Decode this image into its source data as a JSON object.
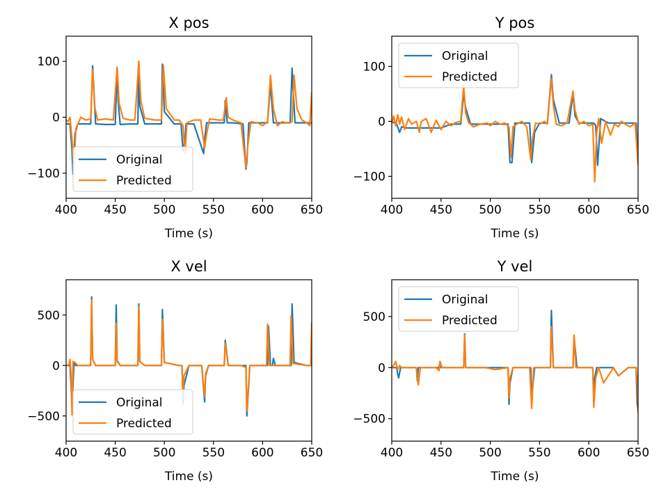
{
  "colors": {
    "original": "#1f77b4",
    "predicted": "#ff7f0e"
  },
  "chart_data": [
    {
      "type": "line",
      "title": "X pos",
      "xlabel": "Time (s)",
      "ylabel": "",
      "xlim": [
        400,
        650
      ],
      "ylim": [
        -145,
        145
      ],
      "xticks": [
        400,
        450,
        500,
        550,
        600,
        650
      ],
      "yticks": [
        -100,
        0,
        100
      ],
      "ytick_labels": [
        "−100",
        "0",
        "100"
      ],
      "legend": "lower-left",
      "series": [
        {
          "name": "Original",
          "x": [
            400,
            404,
            406,
            407,
            409,
            412,
            420,
            425,
            427,
            428,
            430,
            440,
            450,
            452,
            453,
            455,
            465,
            473,
            474,
            475,
            480,
            490,
            497,
            498,
            500,
            510,
            517,
            519,
            521,
            522,
            530,
            540,
            541,
            543,
            545,
            555,
            561,
            562,
            564,
            570,
            580,
            583,
            584,
            586,
            595,
            605,
            608,
            609,
            611,
            620,
            628,
            630,
            631,
            633,
            640,
            650
          ],
          "y": [
            -12,
            -12,
            -60,
            -102,
            -30,
            -12,
            -12,
            -12,
            92,
            60,
            -12,
            -13,
            -13,
            88,
            30,
            -13,
            -12,
            -12,
            100,
            20,
            -12,
            -12,
            -12,
            95,
            10,
            -12,
            -12,
            -60,
            -40,
            -12,
            -12,
            -65,
            -40,
            -10,
            -10,
            -10,
            -10,
            30,
            -10,
            -10,
            -12,
            -93,
            -80,
            -10,
            -10,
            -10,
            60,
            35,
            -10,
            -10,
            -10,
            88,
            50,
            -10,
            -10,
            -10
          ]
        },
        {
          "name": "Predicted",
          "x": [
            400,
            402,
            404,
            406,
            408,
            410,
            415,
            420,
            425,
            427,
            429,
            432,
            440,
            448,
            452,
            454,
            458,
            465,
            470,
            474,
            476,
            480,
            490,
            497,
            499,
            502,
            510,
            515,
            519,
            521,
            523,
            530,
            537,
            541,
            543,
            546,
            555,
            560,
            563,
            565,
            570,
            578,
            583,
            585,
            588,
            595,
            600,
            605,
            608,
            611,
            615,
            620,
            625,
            630,
            632,
            635,
            640,
            645,
            648,
            650
          ],
          "y": [
            -5,
            -8,
            0,
            -40,
            -90,
            -20,
            0,
            -5,
            -3,
            85,
            20,
            -5,
            -3,
            -5,
            90,
            25,
            -2,
            -5,
            -5,
            100,
            30,
            -2,
            -5,
            -5,
            93,
            15,
            -5,
            -5,
            -15,
            -65,
            -10,
            -5,
            -5,
            -55,
            -30,
            -3,
            -5,
            -5,
            35,
            0,
            -5,
            -10,
            -90,
            -50,
            -8,
            -10,
            -15,
            -8,
            75,
            15,
            -15,
            -8,
            -10,
            -8,
            75,
            15,
            -5,
            -10,
            -15,
            45
          ]
        }
      ]
    },
    {
      "type": "line",
      "title": "Y pos",
      "xlabel": "Time (s)",
      "ylabel": "",
      "xlim": [
        400,
        650
      ],
      "ylim": [
        -140,
        155
      ],
      "xticks": [
        400,
        450,
        500,
        550,
        600,
        650
      ],
      "yticks": [
        -100,
        0,
        100
      ],
      "ytick_labels": [
        "−100",
        "0",
        "100"
      ],
      "legend": "upper-left",
      "series": [
        {
          "name": "Original",
          "x": [
            400,
            405,
            408,
            410,
            415,
            420,
            425,
            430,
            440,
            450,
            460,
            470,
            473,
            475,
            480,
            490,
            500,
            510,
            518,
            520,
            522,
            525,
            530,
            540,
            542,
            545,
            550,
            558,
            562,
            564,
            570,
            580,
            584,
            586,
            590,
            600,
            605,
            607,
            609,
            612,
            620,
            630,
            640,
            648,
            650
          ],
          "y": [
            0,
            -5,
            -20,
            -10,
            -12,
            -12,
            -12,
            -12,
            -12,
            -12,
            -5,
            -5,
            50,
            25,
            -5,
            -5,
            -5,
            -5,
            -5,
            -75,
            -75,
            -3,
            -3,
            -3,
            -75,
            -20,
            -3,
            -3,
            85,
            40,
            -3,
            -3,
            50,
            10,
            -3,
            -3,
            -3,
            -8,
            -80,
            5,
            -3,
            -3,
            -3,
            -3,
            -75
          ]
        },
        {
          "name": "Predicted",
          "x": [
            400,
            402,
            404,
            406,
            408,
            410,
            413,
            417,
            420,
            425,
            428,
            430,
            435,
            440,
            445,
            450,
            455,
            460,
            465,
            470,
            473,
            475,
            478,
            483,
            490,
            497,
            500,
            505,
            510,
            515,
            519,
            521,
            523,
            527,
            532,
            537,
            541,
            543,
            546,
            550,
            555,
            558,
            562,
            564,
            567,
            572,
            578,
            584,
            586,
            590,
            595,
            600,
            604,
            606,
            608,
            610,
            613,
            617,
            622,
            626,
            630,
            633,
            637,
            642,
            647,
            650
          ],
          "y": [
            -5,
            10,
            -8,
            12,
            -5,
            8,
            -15,
            5,
            -5,
            0,
            -20,
            0,
            5,
            -20,
            2,
            -15,
            0,
            -8,
            -2,
            0,
            65,
            15,
            -2,
            -10,
            -5,
            -3,
            -8,
            0,
            -5,
            -3,
            -10,
            -65,
            -10,
            -5,
            0,
            -10,
            -70,
            -30,
            -3,
            -5,
            0,
            -5,
            78,
            30,
            -5,
            -8,
            -3,
            55,
            20,
            -5,
            0,
            -8,
            -5,
            -110,
            -20,
            5,
            -40,
            0,
            -25,
            -5,
            -10,
            0,
            -5,
            -10,
            -3,
            -80
          ]
        }
      ]
    },
    {
      "type": "line",
      "title": "X vel",
      "xlabel": "Time (s)",
      "ylabel": "",
      "xlim": [
        400,
        650
      ],
      "ylim": [
        -750,
        850
      ],
      "xticks": [
        400,
        450,
        500,
        550,
        600,
        650
      ],
      "yticks": [
        -500,
        0,
        500
      ],
      "ytick_labels": [
        "−500",
        "0",
        "500"
      ],
      "legend": "lower-left",
      "series": [
        {
          "name": "Original",
          "x": [
            400,
            404,
            405,
            406,
            408,
            410,
            420,
            425,
            426,
            427,
            430,
            445,
            450,
            451,
            452,
            455,
            470,
            473,
            474,
            475,
            480,
            495,
            497,
            498,
            500,
            515,
            518,
            519,
            520,
            525,
            538,
            541,
            542,
            545,
            558,
            561,
            562,
            565,
            578,
            583,
            584,
            587,
            600,
            605,
            606,
            608,
            610,
            611,
            613,
            625,
            629,
            630,
            632,
            645,
            650
          ],
          "y": [
            0,
            0,
            -200,
            -420,
            20,
            0,
            0,
            0,
            680,
            60,
            0,
            0,
            0,
            600,
            50,
            0,
            0,
            0,
            610,
            40,
            0,
            0,
            0,
            555,
            30,
            0,
            0,
            -380,
            -200,
            0,
            0,
            -360,
            -100,
            0,
            0,
            0,
            250,
            0,
            0,
            0,
            -500,
            0,
            0,
            0,
            390,
            0,
            0,
            70,
            0,
            0,
            0,
            610,
            30,
            0,
            0
          ]
        },
        {
          "name": "Predicted",
          "x": [
            400,
            403,
            404,
            405,
            406,
            407,
            409,
            412,
            420,
            425,
            426,
            427,
            430,
            445,
            450,
            451,
            452,
            455,
            470,
            473,
            474,
            475,
            480,
            495,
            497,
            498,
            500,
            515,
            518,
            519,
            520,
            525,
            538,
            541,
            542,
            545,
            558,
            561,
            562,
            565,
            578,
            583,
            584,
            587,
            600,
            604,
            605,
            607,
            610,
            625,
            628,
            629,
            631,
            645,
            649,
            650
          ],
          "y": [
            0,
            10,
            60,
            -100,
            -490,
            40,
            30,
            0,
            0,
            0,
            650,
            60,
            0,
            0,
            0,
            420,
            40,
            0,
            0,
            0,
            580,
            40,
            0,
            0,
            0,
            460,
            30,
            0,
            0,
            -300,
            -100,
            0,
            0,
            -310,
            -80,
            0,
            0,
            0,
            220,
            0,
            0,
            -20,
            -450,
            0,
            0,
            0,
            410,
            0,
            0,
            0,
            0,
            490,
            20,
            0,
            0,
            430
          ]
        }
      ]
    },
    {
      "type": "line",
      "title": "Y vel",
      "xlabel": "Time (s)",
      "ylabel": "",
      "xlim": [
        400,
        650
      ],
      "ylim": [
        -720,
        860
      ],
      "xticks": [
        400,
        450,
        500,
        550,
        600,
        650
      ],
      "yticks": [
        -500,
        0,
        500
      ],
      "ytick_labels": [
        "−500",
        "0",
        "500"
      ],
      "legend": "upper-left",
      "series": [
        {
          "name": "Original",
          "x": [
            400,
            405,
            406,
            407,
            409,
            415,
            425,
            426,
            427,
            430,
            445,
            448,
            449,
            450,
            460,
            470,
            473,
            474,
            475,
            480,
            495,
            505,
            518,
            519,
            520,
            523,
            535,
            541,
            542,
            545,
            555,
            561,
            562,
            564,
            570,
            580,
            584,
            585,
            588,
            600,
            604,
            605,
            606,
            608,
            615,
            625,
            630,
            640,
            648,
            649,
            650
          ],
          "y": [
            0,
            0,
            -60,
            -100,
            0,
            0,
            0,
            -130,
            0,
            0,
            0,
            0,
            60,
            0,
            0,
            0,
            0,
            330,
            0,
            0,
            0,
            0,
            0,
            -360,
            -150,
            0,
            0,
            0,
            -300,
            0,
            0,
            0,
            560,
            0,
            0,
            0,
            0,
            300,
            0,
            0,
            0,
            -320,
            -100,
            0,
            0,
            0,
            -80,
            0,
            0,
            -350,
            -420
          ]
        },
        {
          "name": "Predicted",
          "x": [
            400,
            402,
            404,
            406,
            408,
            410,
            420,
            425,
            427,
            429,
            440,
            445,
            448,
            449,
            451,
            460,
            470,
            473,
            474,
            475,
            480,
            495,
            505,
            518,
            519,
            520,
            523,
            535,
            540,
            542,
            544,
            555,
            561,
            562,
            564,
            570,
            580,
            584,
            585,
            587,
            600,
            604,
            605,
            607,
            610,
            615,
            625,
            630,
            640,
            648,
            649,
            650
          ],
          "y": [
            0,
            20,
            60,
            -20,
            20,
            0,
            0,
            0,
            -170,
            0,
            0,
            0,
            -30,
            60,
            0,
            0,
            0,
            0,
            320,
            0,
            0,
            0,
            -20,
            0,
            -300,
            -100,
            0,
            0,
            0,
            -400,
            0,
            0,
            0,
            400,
            0,
            0,
            0,
            0,
            320,
            0,
            0,
            0,
            -390,
            -100,
            0,
            -150,
            0,
            -80,
            0,
            0,
            -100,
            -440
          ]
        }
      ]
    }
  ]
}
